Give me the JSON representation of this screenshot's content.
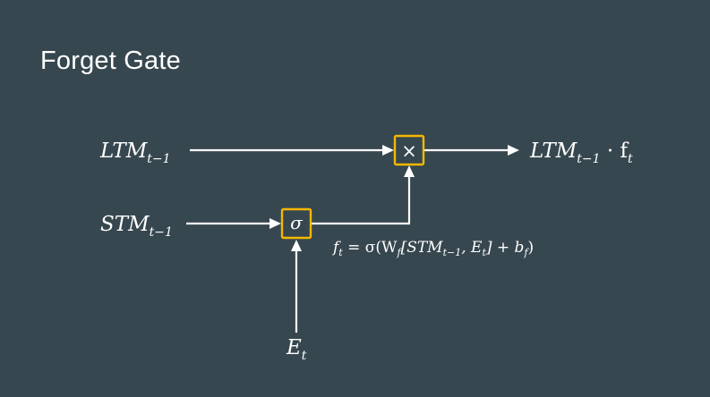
{
  "title": "Forget Gate",
  "labels": {
    "ltm_in": "LTM",
    "ltm_in_sub": "t−1",
    "stm_in": "STM",
    "stm_in_sub": "t−1",
    "event_in": "E",
    "event_in_sub": "t",
    "ltm_out": "LTM",
    "ltm_out_sub": "t−1",
    "ltm_out_dot": " · f",
    "ltm_out_f_sub": "t"
  },
  "gates": {
    "multiply": "×",
    "sigmoid": "σ"
  },
  "formula": {
    "f": "f",
    "f_sub": "t",
    "eq": " = σ(W",
    "w_sub": "f",
    "stm": "[STM",
    "stm_sub": "t−1",
    "e": ", E",
    "e_sub": "t",
    "b": "] + b",
    "b_sub": "f",
    "close": ")"
  },
  "colors": {
    "background": "#37474f",
    "gate_outline": "#f5b800",
    "lines": "#ffffff"
  }
}
